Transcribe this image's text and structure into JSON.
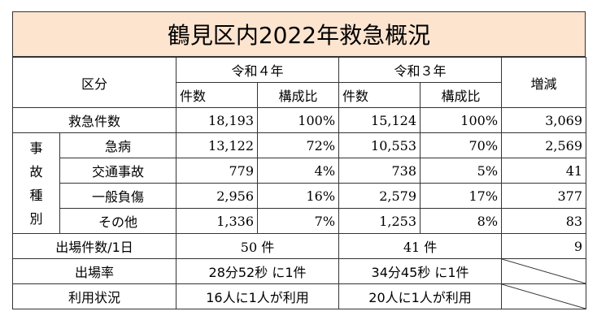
{
  "title": "鶴見区内2022年救急概況",
  "header": {
    "kubun": "区分",
    "r4": "令和４年",
    "r3": "令和３年",
    "zougen": "増減",
    "kensu": "件数",
    "koseihi": "構成比"
  },
  "total_row": {
    "label": "救急件数",
    "r4_count": "18,193",
    "r4_ratio": "100%",
    "r3_count": "15,124",
    "r3_ratio": "100%",
    "diff": "3,069"
  },
  "category_label_chars": [
    "事",
    "故",
    "種",
    "別"
  ],
  "categories": [
    {
      "label": "急病",
      "r4_count": "13,122",
      "r4_ratio": "72%",
      "r3_count": "10,553",
      "r3_ratio": "70%",
      "diff": "2,569"
    },
    {
      "label": "交通事故",
      "r4_count": "779",
      "r4_ratio": "4%",
      "r3_count": "738",
      "r3_ratio": "5%",
      "diff": "41"
    },
    {
      "label": "一般負傷",
      "r4_count": "2,956",
      "r4_ratio": "16%",
      "r3_count": "2,579",
      "r3_ratio": "17%",
      "diff": "377"
    },
    {
      "label": "その他",
      "r4_count": "1,336",
      "r4_ratio": "7%",
      "r3_count": "1,253",
      "r3_ratio": "8%",
      "diff": "83"
    }
  ],
  "daily_row": {
    "label": "出場件数/1日",
    "r4": "50 件",
    "r3": "41 件",
    "diff": "9"
  },
  "rate_row": {
    "label": "出場率",
    "r4": "28分52秒 に1件",
    "r3": "34分45秒 に1件"
  },
  "usage_row": {
    "label": "利用状況",
    "r4": "16人に1人が利用",
    "r3": "20人に1人が利用"
  },
  "colors": {
    "title_bg": "#fce4cf",
    "border": "#333333"
  }
}
